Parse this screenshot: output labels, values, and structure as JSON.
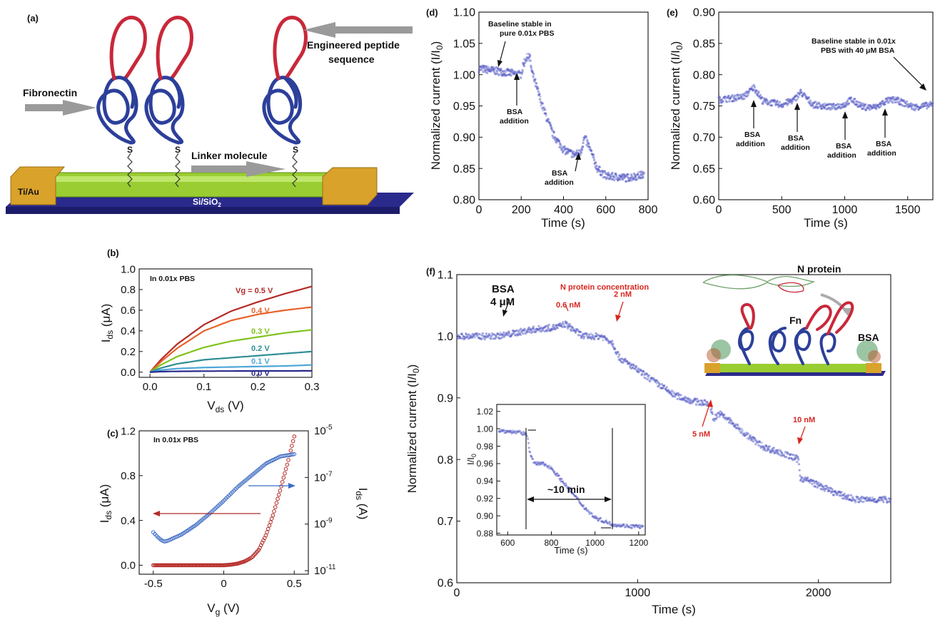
{
  "panel_labels": {
    "a": "(a)",
    "b": "(b)",
    "c": "(c)",
    "d": "(d)",
    "e": "(e)",
    "f": "(f)"
  },
  "schematic": {
    "fibronectin": "Fibronectin",
    "peptide_line1": "Engineered peptide",
    "peptide_line2": "sequence",
    "linker": "Linker molecule",
    "electrode": "Ti/Au",
    "substrate": "Si/SiO",
    "substrate_sub": "2",
    "sulfur": "S",
    "colors": {
      "fn_blue": "#2c3f9a",
      "fn_red": "#c8283a",
      "wire": "#9acd32",
      "pad": "#d9a22b",
      "base": "#2a2a8c"
    }
  },
  "chart_data": [
    {
      "id": "b",
      "type": "line",
      "annotation": "In 0.01x PBS",
      "xlabel": "V",
      "xlabel_sub": "ds",
      "xlabel_unit": " (V)",
      "ylabel": "I",
      "ylabel_sub": "ds",
      "ylabel_unit": " (μA)",
      "xlim": [
        -0.02,
        0.3
      ],
      "ylim": [
        -0.05,
        1.0
      ],
      "xticks": [
        "0.0",
        "0.1",
        "0.2",
        "0.3"
      ],
      "xtick_values": [
        0,
        0.1,
        0.2,
        0.3
      ],
      "yticks": [
        "0.0",
        "0.2",
        "0.4",
        "0.6",
        "0.8",
        "1.0"
      ],
      "ytick_values": [
        0,
        0.2,
        0.4,
        0.6,
        0.8,
        1.0
      ],
      "x": [
        0,
        0.02,
        0.05,
        0.1,
        0.15,
        0.2,
        0.25,
        0.3
      ],
      "series": [
        {
          "name": "Vg = 0.5 V",
          "color": "#b52b27",
          "values": [
            0,
            0.12,
            0.27,
            0.46,
            0.59,
            0.68,
            0.76,
            0.83
          ]
        },
        {
          "name": "0.4 V",
          "color": "#e8622b",
          "values": [
            0,
            0.1,
            0.23,
            0.4,
            0.5,
            0.56,
            0.6,
            0.63
          ]
        },
        {
          "name": "0.3 V",
          "color": "#7fc31c",
          "values": [
            0,
            0.07,
            0.15,
            0.24,
            0.3,
            0.34,
            0.38,
            0.41
          ]
        },
        {
          "name": "0.2 V",
          "color": "#2e8e94",
          "values": [
            0,
            0.04,
            0.08,
            0.12,
            0.14,
            0.16,
            0.18,
            0.2
          ]
        },
        {
          "name": "0.1 V",
          "color": "#4da6d9",
          "values": [
            0,
            0.02,
            0.035,
            0.045,
            0.05,
            0.055,
            0.06,
            0.07
          ]
        },
        {
          "name": "0.0 V",
          "color": "#2a2a8c",
          "values": [
            0,
            0.005,
            0.008,
            0.01,
            0.011,
            0.012,
            0.012,
            0.013
          ]
        }
      ]
    },
    {
      "id": "c",
      "type": "scatter",
      "annotation": "In 0.01x PBS",
      "xlabel": "V",
      "xlabel_sub": "g",
      "xlabel_unit": " (V)",
      "ylabel": "I",
      "ylabel_sub": "ds",
      "ylabel_unit": " (μA)",
      "y2label": "I",
      "y2label_sub": "ds",
      "y2label_unit": " (A)",
      "xlim": [
        -0.6,
        0.6
      ],
      "ylim": [
        -0.08,
        1.2
      ],
      "xticks": [
        "-0.5",
        "0",
        "0.5"
      ],
      "xtick_values": [
        -0.5,
        0,
        0.5
      ],
      "yticks": [
        "0.0",
        "0.4",
        "0.8",
        "1.2"
      ],
      "ytick_values": [
        0,
        0.4,
        0.8,
        1.2
      ],
      "y2ticks": [
        "10",
        "10",
        "10",
        "10"
      ],
      "y2tick_exps": [
        "-11",
        "-9",
        "-7",
        "-5"
      ],
      "y2tick_values": [
        -11,
        -9,
        -7,
        -5
      ],
      "y2lim": [
        -11.15,
        -5
      ],
      "series": [
        {
          "name": "linear",
          "color": "#b52b27",
          "axis": "left",
          "x": [
            -0.5,
            -0.3,
            -0.1,
            0.0,
            0.05,
            0.1,
            0.15,
            0.2,
            0.25,
            0.3,
            0.35,
            0.4,
            0.45,
            0.5
          ],
          "values": [
            0,
            0,
            0,
            0,
            0.005,
            0.015,
            0.035,
            0.07,
            0.14,
            0.27,
            0.45,
            0.67,
            0.9,
            1.15
          ]
        },
        {
          "name": "log",
          "color": "#3c6bc4",
          "axis": "right",
          "log_scale": true,
          "x": [
            -0.5,
            -0.47,
            -0.44,
            -0.42,
            -0.4,
            -0.3,
            -0.2,
            -0.1,
            0,
            0.1,
            0.2,
            0.3,
            0.4,
            0.5
          ],
          "values": [
            -9.35,
            -9.55,
            -9.7,
            -9.75,
            -9.72,
            -9.45,
            -9.05,
            -8.55,
            -8.0,
            -7.4,
            -6.9,
            -6.4,
            -6.1,
            -6.0
          ]
        }
      ]
    },
    {
      "id": "d",
      "type": "scatter",
      "xlabel": "Time (s)",
      "ylabel": "Normalized current (I/I",
      "ylabel_sub": "0",
      "ylabel_end": ")",
      "xlim": [
        0,
        800
      ],
      "ylim": [
        0.8,
        1.1
      ],
      "xticks": [
        "0",
        "200",
        "400",
        "600",
        "800"
      ],
      "xtick_values": [
        0,
        200,
        400,
        600,
        800
      ],
      "yticks": [
        "0.80",
        "0.85",
        "0.90",
        "0.95",
        "1.00",
        "1.05",
        "1.10"
      ],
      "ytick_values": [
        0.8,
        0.85,
        0.9,
        0.95,
        1.0,
        1.05,
        1.1
      ],
      "x": [
        0,
        100,
        200,
        210,
        220,
        240,
        250,
        300,
        350,
        400,
        450,
        480,
        500,
        520,
        560,
        600,
        700,
        780
      ],
      "values": [
        1.01,
        1.005,
        1.0,
        1.015,
        1.025,
        1.03,
        1.005,
        0.95,
        0.905,
        0.88,
        0.872,
        0.875,
        0.9,
        0.885,
        0.85,
        0.838,
        0.835,
        0.84
      ],
      "annotations": [
        "Baseline stable in",
        "pure 0.01x PBS",
        "BSA",
        "addition",
        "BSA",
        "addition"
      ]
    },
    {
      "id": "e",
      "type": "scatter",
      "xlabel": "Time (s)",
      "ylabel": "Normalized current (I/I",
      "ylabel_sub": "0",
      "ylabel_end": ")",
      "xlim": [
        0,
        1700
      ],
      "ylim": [
        0.6,
        0.9
      ],
      "xticks": [
        "0",
        "500",
        "1000",
        "1500"
      ],
      "xtick_values": [
        0,
        500,
        1000,
        1500
      ],
      "yticks": [
        "0.60",
        "0.65",
        "0.70",
        "0.75",
        "0.80",
        "0.85",
        "0.90"
      ],
      "ytick_values": [
        0.6,
        0.65,
        0.7,
        0.75,
        0.8,
        0.85,
        0.9
      ],
      "x": [
        0,
        100,
        200,
        280,
        350,
        500,
        600,
        650,
        750,
        900,
        1000,
        1050,
        1150,
        1250,
        1330,
        1400,
        1550,
        1700
      ],
      "values": [
        0.76,
        0.762,
        0.765,
        0.78,
        0.758,
        0.752,
        0.76,
        0.772,
        0.752,
        0.748,
        0.752,
        0.76,
        0.748,
        0.748,
        0.758,
        0.76,
        0.748,
        0.752
      ],
      "annotations": [
        "Baseline stable in 0.01x",
        "PBS with 40 μM BSA",
        "BSA",
        "addition",
        "BSA",
        "addition",
        "BSA",
        "addition",
        "BSA",
        "addition"
      ]
    },
    {
      "id": "f",
      "type": "scatter",
      "xlabel": "Time (s)",
      "ylabel": "Normalized current (I/I",
      "ylabel_sub": "0",
      "ylabel_end": ")",
      "xlim": [
        0,
        2400
      ],
      "ylim": [
        0.6,
        1.1
      ],
      "xticks": [
        "0",
        "1000",
        "2000"
      ],
      "xtick_values": [
        0,
        1000,
        2000
      ],
      "yticks": [
        "0.6",
        "0.7",
        "0.8",
        "0.9",
        "1.0",
        "1.1"
      ],
      "ytick_values": [
        0.6,
        0.7,
        0.8,
        0.9,
        1.0,
        1.1
      ],
      "x": [
        0,
        200,
        270,
        400,
        560,
        600,
        700,
        800,
        860,
        900,
        1000,
        1100,
        1200,
        1300,
        1400,
        1420,
        1450,
        1500,
        1600,
        1700,
        1800,
        1890,
        1900,
        1950,
        2100,
        2200,
        2400
      ],
      "values": [
        1.0,
        1.0,
        1.002,
        1.01,
        1.015,
        1.02,
        1.0,
        1.0,
        0.99,
        0.965,
        0.945,
        0.925,
        0.905,
        0.895,
        0.89,
        0.865,
        0.875,
        0.865,
        0.84,
        0.82,
        0.81,
        0.8,
        0.77,
        0.765,
        0.745,
        0.735,
        0.735
      ],
      "annotations": {
        "bsa_line1": "BSA",
        "bsa_line2": "4 μM",
        "conc_title": "N protein concentration",
        "c1": "0.6 nM",
        "c2": "2 nM",
        "c3": "5 nM",
        "c4": "10 nM",
        "n_protein": "N protein",
        "fn": "Fn",
        "bsa": "BSA"
      },
      "inset": {
        "xlabel": "Time (s)",
        "ylabel": "I/I",
        "ylabel_sub": "0",
        "xlim": [
          550,
          1230
        ],
        "ylim": [
          0.878,
          1.028
        ],
        "xticks": [
          "600",
          "800",
          "1000",
          "1200"
        ],
        "xtick_values": [
          600,
          800,
          1000,
          1200
        ],
        "yticks": [
          "0.88",
          "0.90",
          "0.92",
          "0.94",
          "0.96",
          "0.98",
          "1.00",
          "1.02"
        ],
        "ytick_values": [
          0.88,
          0.9,
          0.92,
          0.94,
          0.96,
          0.98,
          1.0,
          1.02
        ],
        "x": [
          560,
          600,
          650,
          690,
          700,
          720,
          760,
          800,
          850,
          900,
          950,
          1000,
          1050,
          1080,
          1120,
          1160,
          1200,
          1220
        ],
        "values": [
          0.998,
          0.997,
          0.996,
          0.993,
          0.975,
          0.96,
          0.96,
          0.955,
          0.94,
          0.925,
          0.91,
          0.898,
          0.893,
          0.89,
          0.889,
          0.888,
          0.888,
          0.887
        ],
        "duration_label": "~10 min"
      }
    }
  ]
}
